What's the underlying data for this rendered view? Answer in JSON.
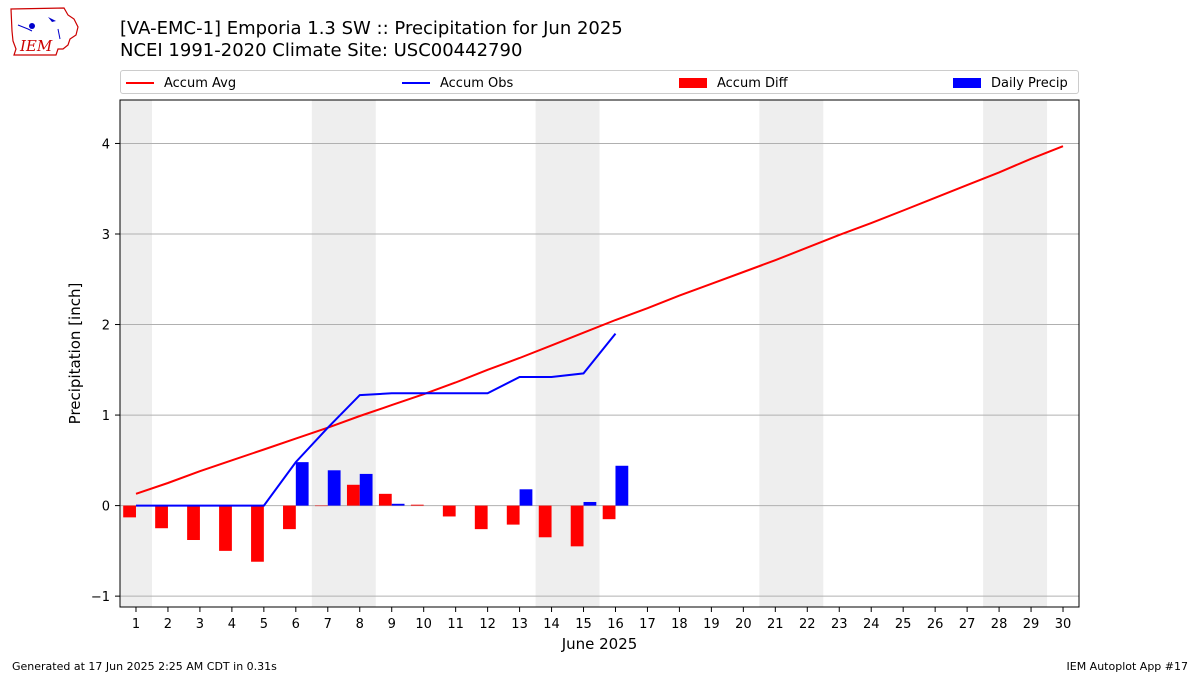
{
  "header": {
    "title_line1": "[VA-EMC-1] Emporia 1.3 SW :: Precipitation for Jun 2025",
    "title_line2": "NCEI 1991-2020 Climate Site: USC00442790",
    "logo_text": "IEM"
  },
  "footer": {
    "left": "Generated at 17 Jun 2025 2:25 AM CDT in 0.31s",
    "right": "IEM Autoplot App #17"
  },
  "colors": {
    "avg": "#ff0000",
    "obs": "#0000ff",
    "diff": "#ff0000",
    "daily": "#0000ff",
    "weekend_band": "#eeeeee",
    "grid": "#b0b0b0"
  },
  "chart_data": {
    "type": "bar",
    "xlabel": "June 2025",
    "ylabel": "Precipitation [inch]",
    "xlim": [
      0.5,
      30.5
    ],
    "ylim": [
      -1.12,
      4.48
    ],
    "x_ticks": [
      1,
      2,
      3,
      4,
      5,
      6,
      7,
      8,
      9,
      10,
      11,
      12,
      13,
      14,
      15,
      16,
      17,
      18,
      19,
      20,
      21,
      22,
      23,
      24,
      25,
      26,
      27,
      28,
      29,
      30
    ],
    "y_ticks": [
      -1,
      0,
      1,
      2,
      3,
      4
    ],
    "grid": "y",
    "legend": [
      "Accum Avg",
      "Accum Obs",
      "Accum Diff",
      "Daily Precip"
    ],
    "legend_placement": "top",
    "weekend_bands": [
      [
        0.5,
        1.5
      ],
      [
        6.5,
        8.5
      ],
      [
        13.5,
        15.5
      ],
      [
        20.5,
        22.5
      ],
      [
        27.5,
        29.5
      ]
    ],
    "series": [
      {
        "name": "Accum Avg",
        "type": "line",
        "x": [
          1,
          2,
          3,
          4,
          5,
          6,
          7,
          8,
          9,
          10,
          11,
          12,
          13,
          14,
          15,
          16,
          17,
          18,
          19,
          20,
          21,
          22,
          23,
          24,
          25,
          26,
          27,
          28,
          29,
          30
        ],
        "values": [
          0.13,
          0.25,
          0.38,
          0.5,
          0.62,
          0.74,
          0.86,
          0.99,
          1.11,
          1.23,
          1.36,
          1.5,
          1.63,
          1.77,
          1.91,
          2.05,
          2.18,
          2.32,
          2.45,
          2.58,
          2.71,
          2.85,
          2.99,
          3.12,
          3.26,
          3.4,
          3.54,
          3.68,
          3.83,
          3.97
        ]
      },
      {
        "name": "Accum Obs",
        "type": "line",
        "x": [
          1,
          2,
          3,
          4,
          5,
          6,
          7,
          8,
          9,
          10,
          11,
          12,
          13,
          14,
          15,
          16
        ],
        "values": [
          0,
          0,
          0,
          0,
          0,
          0.48,
          0.86,
          1.22,
          1.24,
          1.24,
          1.24,
          1.24,
          1.42,
          1.42,
          1.46,
          1.9
        ]
      },
      {
        "name": "Accum Diff",
        "type": "bar",
        "x": [
          1,
          2,
          3,
          4,
          5,
          6,
          7,
          8,
          9,
          10,
          11,
          12,
          13,
          14,
          15,
          16
        ],
        "values": [
          -0.13,
          -0.25,
          -0.38,
          -0.5,
          -0.62,
          -0.26,
          0.0,
          0.23,
          0.13,
          0.01,
          -0.12,
          -0.26,
          -0.21,
          -0.35,
          -0.45,
          -0.15
        ]
      },
      {
        "name": "Daily Precip",
        "type": "bar",
        "x": [
          1,
          2,
          3,
          4,
          5,
          6,
          7,
          8,
          9,
          10,
          11,
          12,
          13,
          14,
          15,
          16
        ],
        "values": [
          0,
          0,
          0,
          0,
          0,
          0.48,
          0.39,
          0.35,
          0.02,
          0,
          0,
          0,
          0.18,
          0,
          0.04,
          0.44
        ]
      }
    ]
  }
}
